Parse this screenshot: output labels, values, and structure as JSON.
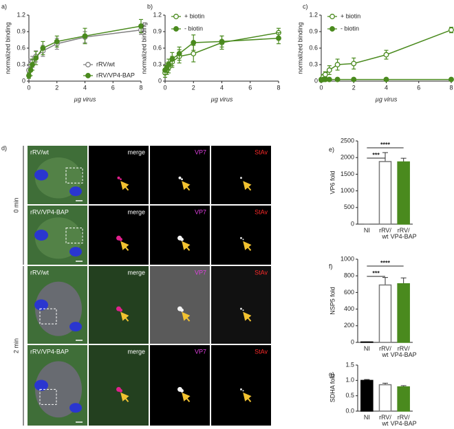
{
  "chart_data": [
    {
      "type": "line",
      "panel": "a)",
      "xlabel": "µg virus",
      "ylabel": "normalized binding",
      "x": [
        0,
        0.125,
        0.25,
        0.5,
        1,
        2,
        4,
        8
      ],
      "xlim": [
        0,
        8
      ],
      "xticks": [
        0,
        2,
        4,
        6,
        8
      ],
      "ylim": [
        0,
        1.2
      ],
      "yticks": [
        0,
        0.3,
        0.6,
        0.9,
        1.2
      ],
      "legend": "lower right",
      "series": [
        {
          "name": "rRV/wt",
          "color": "#808080",
          "marker": "open",
          "values": [
            0.2,
            0.3,
            0.35,
            0.45,
            0.55,
            0.68,
            0.8,
            0.93
          ],
          "errors": [
            0.08,
            0.1,
            0.1,
            0.1,
            0.1,
            0.1,
            0.1,
            0.08
          ]
        },
        {
          "name": "rRV/VP4-BAP",
          "color": "#4a8a1e",
          "marker": "filled",
          "values": [
            0.1,
            0.2,
            0.3,
            0.42,
            0.6,
            0.72,
            0.82,
            1.0
          ],
          "errors": [
            0.05,
            0.1,
            0.1,
            0.12,
            0.12,
            0.1,
            0.14,
            0.12
          ]
        }
      ]
    },
    {
      "type": "line",
      "panel": "b)",
      "xlabel": "µg virus",
      "ylabel": "normalized binding",
      "x": [
        0,
        0.125,
        0.25,
        0.5,
        1,
        2,
        4,
        8
      ],
      "xlim": [
        0,
        8
      ],
      "xticks": [
        0,
        2,
        4,
        6,
        8
      ],
      "ylim": [
        0,
        1.2
      ],
      "yticks": [
        0,
        0.3,
        0.6,
        0.9,
        1.2
      ],
      "legend": "upper left",
      "series": [
        {
          "name": "+ biotin",
          "color": "#4a8a1e",
          "marker": "open",
          "values": [
            0.15,
            0.2,
            0.25,
            0.35,
            0.45,
            0.5,
            0.7,
            0.88
          ],
          "errors": [
            0.08,
            0.08,
            0.1,
            0.1,
            0.12,
            0.15,
            0.12,
            0.08
          ]
        },
        {
          "name": "- biotin",
          "color": "#4a8a1e",
          "marker": "filled",
          "values": [
            0.2,
            0.25,
            0.3,
            0.4,
            0.5,
            0.7,
            0.72,
            0.78
          ],
          "errors": [
            0.08,
            0.08,
            0.1,
            0.12,
            0.12,
            0.14,
            0.1,
            0.1
          ]
        }
      ]
    },
    {
      "type": "line",
      "panel": "c)",
      "xlabel": "µg virus",
      "ylabel": "normalized binding",
      "x": [
        0,
        0.125,
        0.25,
        0.5,
        1,
        2,
        4,
        8
      ],
      "xlim": [
        0,
        8
      ],
      "xticks": [
        0,
        2,
        4,
        6,
        8
      ],
      "ylim": [
        0,
        1.2
      ],
      "yticks": [
        0,
        0.3,
        0.6,
        0.9,
        1.2
      ],
      "legend": "upper left",
      "series": [
        {
          "name": "+ biotin",
          "color": "#4a8a1e",
          "marker": "open",
          "values": [
            0.03,
            0.08,
            0.12,
            0.2,
            0.3,
            0.32,
            0.48,
            0.93
          ],
          "errors": [
            0.02,
            0.04,
            0.05,
            0.08,
            0.1,
            0.1,
            0.08,
            0.05
          ]
        },
        {
          "name": "- biotin",
          "color": "#4a8a1e",
          "marker": "filled",
          "values": [
            0.02,
            0.03,
            0.03,
            0.03,
            0.03,
            0.03,
            0.03,
            0.03
          ],
          "errors": [
            0.01,
            0.01,
            0.01,
            0.01,
            0.01,
            0.01,
            0.01,
            0.01
          ]
        }
      ]
    },
    {
      "type": "bar",
      "panel": "e)",
      "ylabel": "VP6 fold",
      "categories": [
        [
          "NI"
        ],
        [
          "rRV/",
          "wt"
        ],
        [
          "rRV/",
          "VP4-BAP"
        ]
      ],
      "values": [
        0,
        1880,
        1870
      ],
      "errors": [
        0,
        270,
        110
      ],
      "colors": [
        "#000000",
        "#ffffff",
        "#4a8a1e"
      ],
      "edgecolors": [
        "#000000",
        "#777777",
        "#4a8a1e"
      ],
      "ylim": [
        0,
        2500
      ],
      "yticks": [
        0,
        500,
        1000,
        1500,
        2000,
        2500
      ],
      "annotations": [
        "***",
        "****"
      ]
    },
    {
      "type": "bar",
      "panel": "f)",
      "ylabel": "NSP5 fold",
      "categories": [
        [
          "NI"
        ],
        [
          "rRV/",
          "wt"
        ],
        [
          "rRV/",
          "VP4-BAP"
        ]
      ],
      "values": [
        5,
        690,
        705
      ],
      "errors": [
        0,
        90,
        70
      ],
      "colors": [
        "#000000",
        "#ffffff",
        "#4a8a1e"
      ],
      "edgecolors": [
        "#000000",
        "#777777",
        "#4a8a1e"
      ],
      "ylim": [
        0,
        1000
      ],
      "yticks": [
        0,
        200,
        400,
        600,
        800,
        1000
      ],
      "annotations": [
        "***",
        "****"
      ]
    },
    {
      "type": "bar",
      "panel": "g)",
      "ylabel": "SDHA fold",
      "categories": [
        [
          "NI"
        ],
        [
          "rRV/",
          "wt"
        ],
        [
          "rRV/",
          "VP4-BAP"
        ]
      ],
      "values": [
        1.0,
        0.86,
        0.79
      ],
      "errors": [
        0.03,
        0.05,
        0.04
      ],
      "colors": [
        "#000000",
        "#ffffff",
        "#4a8a1e"
      ],
      "edgecolors": [
        "#000000",
        "#777777",
        "#4a8a1e"
      ],
      "ylim": [
        0,
        1.5
      ],
      "yticks": [
        {
          "value": 0,
          "label": "0.0"
        },
        0.5,
        {
          "value": 1,
          "label": "1.0"
        },
        1.5
      ]
    }
  ],
  "microscopy": {
    "panel": "d)",
    "times": [
      "0 min",
      "2 min"
    ],
    "rows": [
      {
        "virus": "rRV/wt",
        "channels": [
          "merge",
          "VP7",
          "StAv"
        ]
      },
      {
        "virus": "rRV/VP4-BAP",
        "channels": [
          "merge",
          "VP7",
          "StAv"
        ]
      },
      {
        "virus": "rRV/wt",
        "channels": [
          "merge",
          "VP7",
          "StAv"
        ]
      },
      {
        "virus": "rRV/VP4-BAP",
        "channels": [
          "merge",
          "VP7",
          "StAv"
        ]
      }
    ]
  }
}
